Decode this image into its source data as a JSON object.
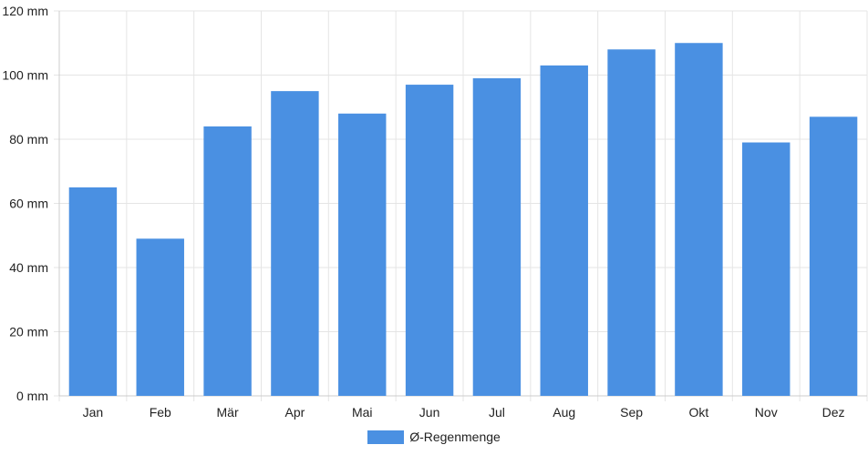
{
  "chart_data": {
    "type": "bar",
    "categories": [
      "Jan",
      "Feb",
      "Mär",
      "Apr",
      "Mai",
      "Jun",
      "Jul",
      "Aug",
      "Sep",
      "Okt",
      "Nov",
      "Dez"
    ],
    "series": [
      {
        "name": "Ø-Regenmenge",
        "values": [
          65,
          49,
          84,
          95,
          88,
          97,
          99,
          103,
          108,
          110,
          79,
          87
        ]
      }
    ],
    "y_ticks": [
      "0 mm",
      "20 mm",
      "40 mm",
      "60 mm",
      "80 mm",
      "100 mm",
      "120 mm"
    ],
    "ylim": [
      0,
      120
    ],
    "grid": true,
    "legend_position": "bottom-center",
    "colors": {
      "bar": "#4a90e2",
      "grid": "#e5e5e5",
      "axis": "#cccccc"
    }
  }
}
